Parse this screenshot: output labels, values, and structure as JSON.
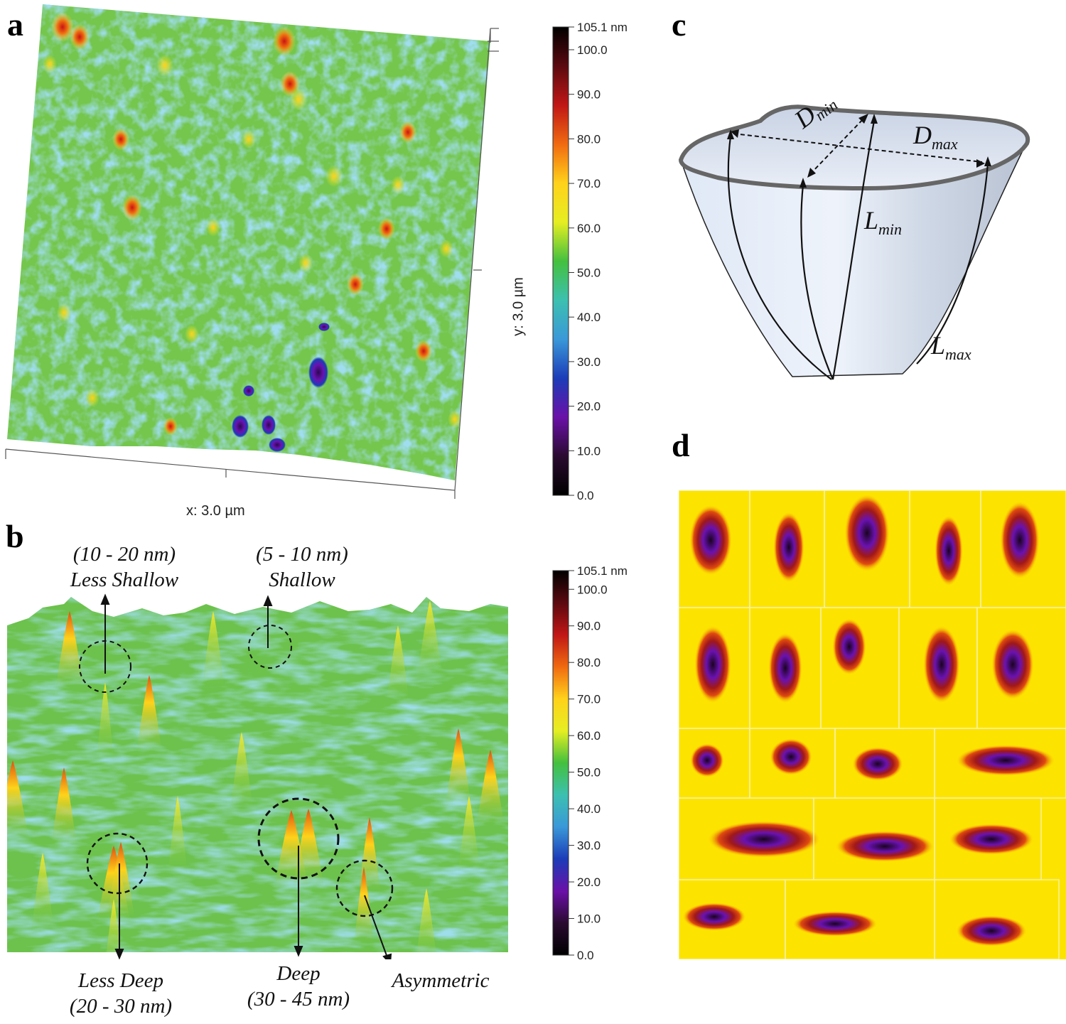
{
  "panels": {
    "a": {
      "letter": "a",
      "x_label": "x: 3.0 µm",
      "y_label": "y: 3.0 µm"
    },
    "b": {
      "letter": "b",
      "annotations": [
        {
          "range": "(10 - 20 nm)",
          "name": "Less Shallow"
        },
        {
          "range": "(5 - 10 nm)",
          "name": "Shallow"
        },
        {
          "name": "Less Deep",
          "range": "(20 - 30 nm)"
        },
        {
          "name": "Deep",
          "range": "(30 - 45 nm)"
        },
        {
          "name": "Asymmetric"
        }
      ]
    },
    "c": {
      "letter": "c",
      "labels": {
        "d_min": "D",
        "d_min_sub": "min",
        "d_max": "D",
        "d_max_sub": "max",
        "l_min": "L",
        "l_min_sub": "min",
        "l_max": "L",
        "l_max_sub": "max"
      }
    },
    "d": {
      "letter": "d"
    }
  },
  "colorbar": {
    "ticks": [
      "105.1 nm",
      "100.0",
      "90.0",
      "80.0",
      "70.0",
      "60.0",
      "50.0",
      "40.0",
      "30.0",
      "20.0",
      "10.0",
      "0.0"
    ],
    "colors": [
      "#000000",
      "#5a0a10",
      "#c01616",
      "#f06a10",
      "#ffd21a",
      "#e6ee22",
      "#44c03e",
      "#3cc0b0",
      "#3a98d8",
      "#1c3cb8",
      "#6a10a8",
      "#2a0a30",
      "#000000"
    ]
  },
  "colors": {
    "surface_green": "#7ec94a",
    "surface_blue": "#4aa6d8",
    "pit_yellow": "#fde400",
    "pit_red": "#b01818",
    "pit_purple": "#6a12b0"
  }
}
